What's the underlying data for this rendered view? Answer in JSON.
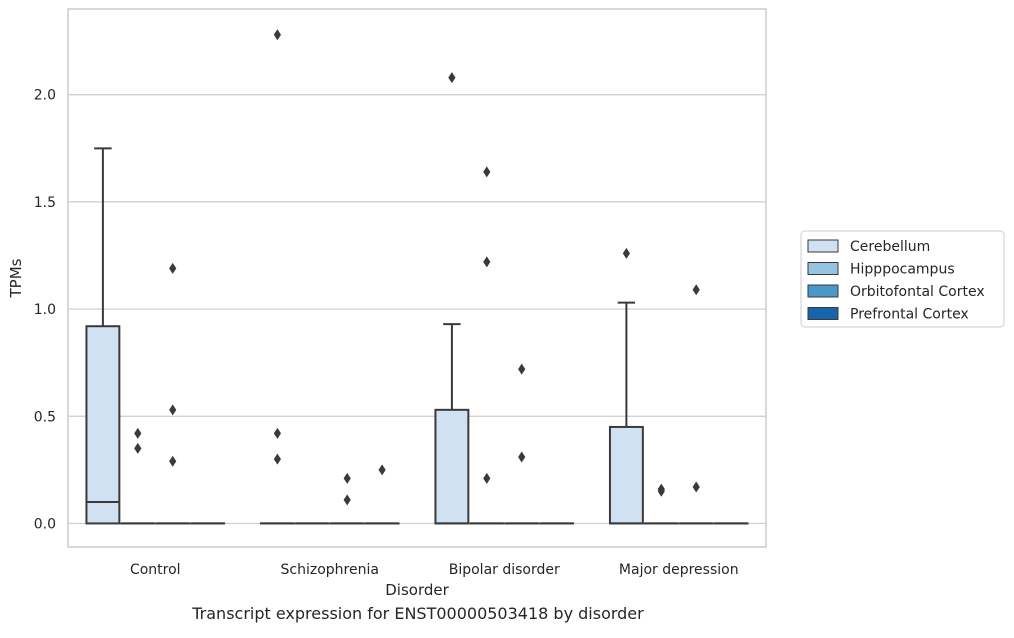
{
  "chart_data": {
    "type": "box",
    "caption": "Transcript expression for ENST00000503418 by disorder",
    "xlabel": "Disorder",
    "ylabel": "TPMs",
    "categories": [
      "Control",
      "Schizophrenia",
      "Bipolar disorder",
      "Major depression"
    ],
    "ylim": [
      -0.11,
      2.4
    ],
    "yticks": [
      0.0,
      0.5,
      1.0,
      1.5,
      2.0
    ],
    "ytick_labels": [
      "0.0",
      "0.5",
      "1.0",
      "1.5",
      "2.0"
    ],
    "grid": "horizontal",
    "legend_position": "right",
    "series": [
      {
        "name": "Cerebellum",
        "color": "#d0e1f2",
        "boxes": [
          {
            "category": "Control",
            "q1": 0.0,
            "median": 0.1,
            "q3": 0.92,
            "whisker_low": 0.0,
            "whisker_high": 1.75,
            "outliers": []
          },
          {
            "category": "Schizophrenia",
            "q1": 0.0,
            "median": 0.0,
            "q3": 0.0,
            "whisker_low": 0.0,
            "whisker_high": 0.0,
            "outliers": [
              0.3,
              0.42,
              2.28
            ]
          },
          {
            "category": "Bipolar disorder",
            "q1": 0.0,
            "median": 0.0,
            "q3": 0.53,
            "whisker_low": 0.0,
            "whisker_high": 0.93,
            "outliers": [
              2.08
            ]
          },
          {
            "category": "Major depression",
            "q1": 0.0,
            "median": 0.0,
            "q3": 0.45,
            "whisker_low": 0.0,
            "whisker_high": 1.03,
            "outliers": [
              1.26
            ]
          }
        ]
      },
      {
        "name": "Hipppocampus",
        "color": "#94c4df",
        "boxes": [
          {
            "category": "Control",
            "q1": 0.0,
            "median": 0.0,
            "q3": 0.0,
            "whisker_low": 0.0,
            "whisker_high": 0.0,
            "outliers": [
              0.35,
              0.42
            ]
          },
          {
            "category": "Schizophrenia",
            "q1": 0.0,
            "median": 0.0,
            "q3": 0.0,
            "whisker_low": 0.0,
            "whisker_high": 0.0,
            "outliers": []
          },
          {
            "category": "Bipolar disorder",
            "q1": 0.0,
            "median": 0.0,
            "q3": 0.0,
            "whisker_low": 0.0,
            "whisker_high": 0.0,
            "outliers": [
              0.21,
              1.22,
              1.64
            ]
          },
          {
            "category": "Major depression",
            "q1": 0.0,
            "median": 0.0,
            "q3": 0.0,
            "whisker_low": 0.0,
            "whisker_high": 0.0,
            "outliers": [
              0.15,
              0.16
            ]
          }
        ]
      },
      {
        "name": "Orbitofontal Cortex",
        "color": "#4a98c9",
        "boxes": [
          {
            "category": "Control",
            "q1": 0.0,
            "median": 0.0,
            "q3": 0.0,
            "whisker_low": 0.0,
            "whisker_high": 0.0,
            "outliers": [
              0.29,
              0.53,
              1.19
            ]
          },
          {
            "category": "Schizophrenia",
            "q1": 0.0,
            "median": 0.0,
            "q3": 0.0,
            "whisker_low": 0.0,
            "whisker_high": 0.0,
            "outliers": [
              0.11,
              0.21
            ]
          },
          {
            "category": "Bipolar disorder",
            "q1": 0.0,
            "median": 0.0,
            "q3": 0.0,
            "whisker_low": 0.0,
            "whisker_high": 0.0,
            "outliers": [
              0.31,
              0.72
            ]
          },
          {
            "category": "Major depression",
            "q1": 0.0,
            "median": 0.0,
            "q3": 0.0,
            "whisker_low": 0.0,
            "whisker_high": 0.0,
            "outliers": [
              0.17,
              1.09
            ]
          }
        ]
      },
      {
        "name": "Prefrontal Cortex",
        "color": "#1764ab",
        "boxes": [
          {
            "category": "Control",
            "q1": 0.0,
            "median": 0.0,
            "q3": 0.0,
            "whisker_low": 0.0,
            "whisker_high": 0.0,
            "outliers": []
          },
          {
            "category": "Schizophrenia",
            "q1": 0.0,
            "median": 0.0,
            "q3": 0.0,
            "whisker_low": 0.0,
            "whisker_high": 0.0,
            "outliers": [
              0.25
            ]
          },
          {
            "category": "Bipolar disorder",
            "q1": 0.0,
            "median": 0.0,
            "q3": 0.0,
            "whisker_low": 0.0,
            "whisker_high": 0.0,
            "outliers": []
          },
          {
            "category": "Major depression",
            "q1": 0.0,
            "median": 0.0,
            "q3": 0.0,
            "whisker_low": 0.0,
            "whisker_high": 0.0,
            "outliers": []
          }
        ]
      }
    ]
  }
}
